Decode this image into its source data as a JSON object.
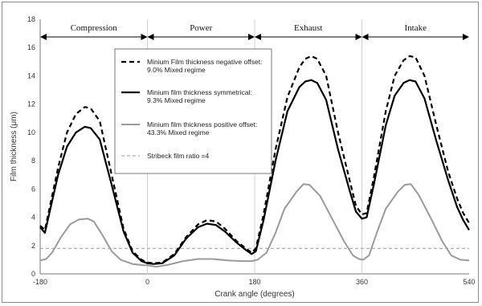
{
  "chart_data": {
    "type": "line",
    "xlabel": "Crank angle (degrees)",
    "ylabel": "Film thickness (μm)",
    "xlim": [
      -180,
      540
    ],
    "ylim": [
      0,
      18
    ],
    "x_ticks": [
      "-180",
      "0",
      "180",
      "360",
      "540"
    ],
    "y_ticks": [
      "0",
      "2",
      "4",
      "6",
      "8",
      "10",
      "12",
      "14",
      "16",
      "18"
    ],
    "grid": false,
    "legend_position": "upper-left-center, boxed",
    "phases": [
      {
        "label": "Compression",
        "start": -180,
        "end": 0
      },
      {
        "label": "Power",
        "start": 0,
        "end": 180
      },
      {
        "label": "Exhaust",
        "start": 180,
        "end": 360
      },
      {
        "label": "Intake",
        "start": 360,
        "end": 540
      }
    ],
    "series": [
      {
        "name_line1": "Minium Film thickness negative offset:",
        "name_line2": "9.0% Mixed regime",
        "style": "dashed-thick",
        "color": "#000000",
        "points": [
          [
            -180,
            3.4
          ],
          [
            -172,
            3.1
          ],
          [
            -165,
            4.5
          ],
          [
            -150,
            7.5
          ],
          [
            -135,
            10.0
          ],
          [
            -120,
            11.3
          ],
          [
            -105,
            11.8
          ],
          [
            -95,
            11.7
          ],
          [
            -80,
            10.8
          ],
          [
            -60,
            7.0
          ],
          [
            -40,
            3.2
          ],
          [
            -25,
            1.6
          ],
          [
            -10,
            1.0
          ],
          [
            0,
            0.8
          ],
          [
            10,
            0.75
          ],
          [
            25,
            0.8
          ],
          [
            45,
            1.4
          ],
          [
            65,
            2.6
          ],
          [
            85,
            3.5
          ],
          [
            100,
            3.8
          ],
          [
            115,
            3.7
          ],
          [
            130,
            3.2
          ],
          [
            150,
            2.3
          ],
          [
            165,
            1.8
          ],
          [
            175,
            1.5
          ],
          [
            182,
            1.8
          ],
          [
            195,
            4.2
          ],
          [
            215,
            8.8
          ],
          [
            235,
            12.5
          ],
          [
            255,
            14.6
          ],
          [
            265,
            15.2
          ],
          [
            275,
            15.4
          ],
          [
            285,
            15.2
          ],
          [
            300,
            14.0
          ],
          [
            320,
            10.0
          ],
          [
            340,
            6.5
          ],
          [
            350,
            4.8
          ],
          [
            360,
            4.2
          ],
          [
            368,
            4.3
          ],
          [
            380,
            6.8
          ],
          [
            400,
            11.5
          ],
          [
            415,
            14.0
          ],
          [
            430,
            15.1
          ],
          [
            440,
            15.4
          ],
          [
            450,
            15.3
          ],
          [
            465,
            14.0
          ],
          [
            485,
            10.5
          ],
          [
            505,
            7.2
          ],
          [
            520,
            5.3
          ],
          [
            530,
            4.3
          ],
          [
            540,
            3.6
          ]
        ]
      },
      {
        "name_line1": "Minium film thickness symmetrical:",
        "name_line2": "9.3% Mixed regime",
        "style": "solid-thick",
        "color": "#000000",
        "points": [
          [
            -180,
            3.3
          ],
          [
            -172,
            2.9
          ],
          [
            -165,
            4.2
          ],
          [
            -150,
            7.0
          ],
          [
            -135,
            9.0
          ],
          [
            -120,
            10.0
          ],
          [
            -105,
            10.4
          ],
          [
            -95,
            10.3
          ],
          [
            -80,
            9.5
          ],
          [
            -60,
            6.3
          ],
          [
            -40,
            3.0
          ],
          [
            -25,
            1.5
          ],
          [
            -10,
            0.9
          ],
          [
            0,
            0.75
          ],
          [
            10,
            0.7
          ],
          [
            25,
            0.75
          ],
          [
            45,
            1.3
          ],
          [
            65,
            2.5
          ],
          [
            85,
            3.3
          ],
          [
            100,
            3.55
          ],
          [
            115,
            3.45
          ],
          [
            130,
            3.0
          ],
          [
            150,
            2.2
          ],
          [
            165,
            1.7
          ],
          [
            175,
            1.4
          ],
          [
            182,
            1.6
          ],
          [
            195,
            3.8
          ],
          [
            215,
            8.0
          ],
          [
            235,
            11.5
          ],
          [
            255,
            13.2
          ],
          [
            265,
            13.6
          ],
          [
            275,
            13.7
          ],
          [
            285,
            13.5
          ],
          [
            300,
            12.3
          ],
          [
            320,
            8.8
          ],
          [
            340,
            5.8
          ],
          [
            350,
            4.4
          ],
          [
            360,
            3.9
          ],
          [
            368,
            4.0
          ],
          [
            380,
            6.3
          ],
          [
            400,
            10.5
          ],
          [
            415,
            12.6
          ],
          [
            430,
            13.5
          ],
          [
            440,
            13.7
          ],
          [
            450,
            13.6
          ],
          [
            465,
            12.4
          ],
          [
            485,
            9.4
          ],
          [
            505,
            6.6
          ],
          [
            520,
            4.7
          ],
          [
            530,
            3.8
          ],
          [
            540,
            3.1
          ]
        ]
      },
      {
        "name_line1": "Minium film thickness positive offset:",
        "name_line2": "43.3% Mixed regime",
        "style": "solid-gray",
        "color": "#9a9a9a",
        "points": [
          [
            -180,
            0.95
          ],
          [
            -170,
            1.05
          ],
          [
            -160,
            1.5
          ],
          [
            -145,
            2.6
          ],
          [
            -130,
            3.5
          ],
          [
            -115,
            3.85
          ],
          [
            -100,
            3.9
          ],
          [
            -90,
            3.7
          ],
          [
            -75,
            2.7
          ],
          [
            -60,
            1.6
          ],
          [
            -45,
            1.0
          ],
          [
            -25,
            0.7
          ],
          [
            -5,
            0.6
          ],
          [
            0,
            0.6
          ],
          [
            15,
            0.5
          ],
          [
            35,
            0.65
          ],
          [
            60,
            0.9
          ],
          [
            85,
            1.05
          ],
          [
            110,
            1.05
          ],
          [
            135,
            0.95
          ],
          [
            160,
            0.9
          ],
          [
            175,
            0.9
          ],
          [
            185,
            1.0
          ],
          [
            200,
            1.5
          ],
          [
            215,
            2.9
          ],
          [
            230,
            4.6
          ],
          [
            250,
            5.8
          ],
          [
            262,
            6.35
          ],
          [
            272,
            6.3
          ],
          [
            290,
            5.5
          ],
          [
            310,
            3.9
          ],
          [
            330,
            2.3
          ],
          [
            345,
            1.3
          ],
          [
            355,
            1.05
          ],
          [
            362,
            1.0
          ],
          [
            372,
            1.3
          ],
          [
            385,
            2.9
          ],
          [
            400,
            4.6
          ],
          [
            420,
            5.8
          ],
          [
            432,
            6.3
          ],
          [
            442,
            6.35
          ],
          [
            455,
            5.6
          ],
          [
            475,
            4.0
          ],
          [
            495,
            2.3
          ],
          [
            510,
            1.3
          ],
          [
            525,
            1.0
          ],
          [
            540,
            0.95
          ]
        ]
      },
      {
        "name_line1": "Stribeck film ratio =4",
        "name_line2": "",
        "style": "dashed-thin-gray",
        "color": "#9a9a9a",
        "points": [
          [
            -180,
            1.8
          ],
          [
            540,
            1.8
          ]
        ]
      }
    ]
  }
}
